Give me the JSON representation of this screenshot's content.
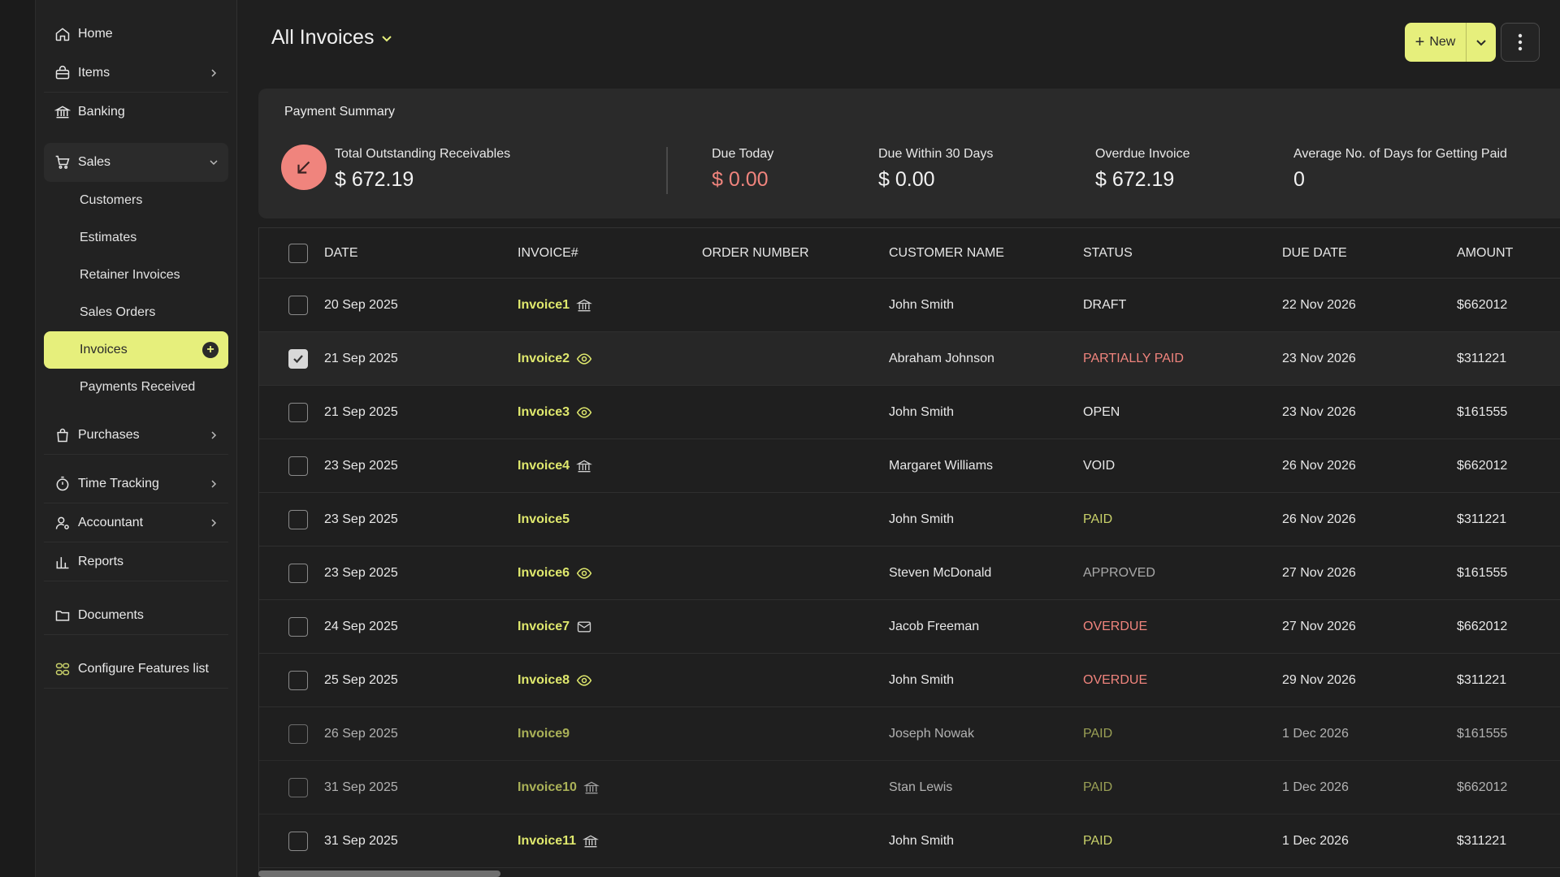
{
  "sidebar": {
    "home": "Home",
    "items": "Items",
    "banking": "Banking",
    "sales": "Sales",
    "sales_sub": [
      "Customers",
      "Estimates",
      "Retainer Invoices",
      "Sales Orders",
      "Invoices",
      "Payments Received"
    ],
    "purchases": "Purchases",
    "time_tracking": "Time Tracking",
    "accountant": "Accountant",
    "reports": "Reports",
    "documents": "Documents",
    "configure": "Configure Features list"
  },
  "header": {
    "title": "All Invoices",
    "new_label": "New"
  },
  "summary": {
    "heading": "Payment Summary",
    "total_label": "Total Outstanding Receivables",
    "total_value": "$ 672.19",
    "due_today_label": "Due Today",
    "due_today_value": "$ 0.00",
    "due30_label": "Due Within 30 Days",
    "due30_value": "$ 0.00",
    "overdue_label": "Overdue Invoice",
    "overdue_value": "$ 672.19",
    "avg_label": "Average No. of Days for Getting Paid",
    "avg_value": "0"
  },
  "table": {
    "columns": [
      "DATE",
      "INVOICE#",
      "ORDER NUMBER",
      "CUSTOMER NAME",
      "STATUS",
      "DUE DATE",
      "AMOUNT"
    ],
    "rows": [
      {
        "date": "20 Sep 2025",
        "invoice": "Invoice1",
        "icon": "bank-icon",
        "order": "",
        "customer": "John Smith",
        "status": "DRAFT",
        "status_class": "st-draft",
        "due": "22 Nov 2026",
        "amount": "$662012",
        "checked": false,
        "dim": false
      },
      {
        "date": "21 Sep 2025",
        "invoice": "Invoice2",
        "icon": "eye-icon",
        "order": "",
        "customer": "Abraham Johnson",
        "status": "PARTIALLY PAID",
        "status_class": "st-partial",
        "due": "23 Nov 2026",
        "amount": "$311221",
        "checked": true,
        "dim": false
      },
      {
        "date": "21 Sep 2025",
        "invoice": "Invoice3",
        "icon": "eye-icon",
        "order": "",
        "customer": "John Smith",
        "status": "OPEN",
        "status_class": "st-open",
        "due": "23 Nov 2026",
        "amount": "$161555",
        "checked": false,
        "dim": false
      },
      {
        "date": "23 Sep 2025",
        "invoice": "Invoice4",
        "icon": "bank-icon",
        "order": "",
        "customer": "Margaret Williams",
        "status": "VOID",
        "status_class": "st-void",
        "due": "26 Nov 2026",
        "amount": "$662012",
        "checked": false,
        "dim": false
      },
      {
        "date": "23 Sep 2025",
        "invoice": "Invoice5",
        "icon": "",
        "order": "",
        "customer": "John Smith",
        "status": "PAID",
        "status_class": "st-paid",
        "due": "26 Nov 2026",
        "amount": "$311221",
        "checked": false,
        "dim": false
      },
      {
        "date": "23 Sep 2025",
        "invoice": "Invoice6",
        "icon": "eye-icon",
        "order": "",
        "customer": "Steven McDonald",
        "status": "APPROVED",
        "status_class": "st-approved",
        "due": "27 Nov 2026",
        "amount": "$161555",
        "checked": false,
        "dim": false
      },
      {
        "date": "24 Sep 2025",
        "invoice": "Invoice7",
        "icon": "mail-icon",
        "order": "",
        "customer": "Jacob Freeman",
        "status": "OVERDUE",
        "status_class": "st-overdue",
        "due": "27 Nov 2026",
        "amount": "$662012",
        "checked": false,
        "dim": false
      },
      {
        "date": "25 Sep 2025",
        "invoice": "Invoice8",
        "icon": "eye-icon",
        "order": "",
        "customer": "John Smith",
        "status": "OVERDUE",
        "status_class": "st-overdue",
        "due": "29 Nov 2026",
        "amount": "$311221",
        "checked": false,
        "dim": false
      },
      {
        "date": "26 Sep 2025",
        "invoice": "Invoice9",
        "icon": "",
        "order": "",
        "customer": "Joseph Nowak",
        "status": "PAID",
        "status_class": "st-paid",
        "due": "1 Dec 2026",
        "amount": "$161555",
        "checked": false,
        "dim": true
      },
      {
        "date": "31 Sep 2025",
        "invoice": "Invoice10",
        "icon": "bank-icon",
        "order": "",
        "customer": "Stan Lewis",
        "status": "PAID",
        "status_class": "st-paid",
        "due": "1 Dec 2026",
        "amount": "$662012",
        "checked": false,
        "dim": true
      },
      {
        "date": "31 Sep 2025",
        "invoice": "Invoice11",
        "icon": "bank-icon",
        "order": "",
        "customer": "John Smith",
        "status": "PAID",
        "status_class": "st-paid",
        "due": "1 Dec 2026",
        "amount": "$311221",
        "checked": false,
        "dim": false
      }
    ]
  },
  "colors": {
    "accent": "#e6ef7c",
    "danger": "#f0847d",
    "background": "#1f1f1f"
  }
}
